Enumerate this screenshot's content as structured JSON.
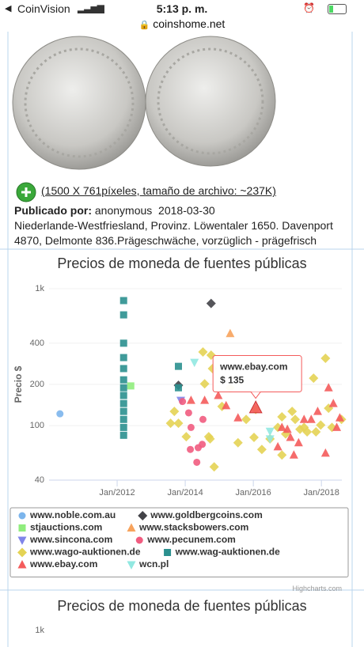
{
  "status_bar": {
    "carrier": "CoinVision",
    "time": "5:13 p. m.",
    "url": "coinshome.net"
  },
  "coin_info": {
    "image_link": "(1500 X 761píxeles, tamaño de archivo: ~237K)",
    "posted_by_label": "Publicado por:",
    "posted_by": "anonymous  2018-03-30",
    "description": "Niederlande-Westfriesland, Provinz. Löwentaler 1650. Davenport 4870, Delmonte 836.Prägeschwäche, vorzüglich - prägefrisch"
  },
  "chart_data": [
    {
      "type": "scatter",
      "title": "Precios de moneda de fuentes públicas",
      "y_axis_title": "Precio $",
      "y_log": true,
      "grid": true,
      "legend": "bottom",
      "credits": "Highcharts.com",
      "xlim": [
        2010,
        2018.6
      ],
      "ylim": [
        40,
        1000
      ],
      "xticks": [
        {
          "value": 2012,
          "label": "Jan/2012"
        },
        {
          "value": 2014,
          "label": "Jan/2014"
        },
        {
          "value": 2016,
          "label": "Jan/2016"
        },
        {
          "value": 2018,
          "label": "Jan/2018"
        }
      ],
      "yticks": [
        40,
        100,
        200,
        400,
        {
          "value": 1000,
          "label": "1k"
        }
      ],
      "series": [
        {
          "name": "www.noble.com.au",
          "color": "#7cb5ec",
          "symbol": "circle",
          "x": [
            2010.32
          ],
          "values": [
            122
          ]
        },
        {
          "name": "www.goldbergcoins.com",
          "color": "#434348",
          "symbol": "diamond",
          "x": [
            2014.76,
            2013.8
          ],
          "values": [
            780,
            197
          ]
        },
        {
          "name": "stjauctions.com",
          "color": "#90ed7d",
          "symbol": "square",
          "x": [
            2012.4
          ],
          "values": [
            195
          ]
        },
        {
          "name": "www.stacksbowers.com",
          "color": "#f7a35c",
          "symbol": "triangle",
          "x": [
            2015.32
          ],
          "values": [
            470
          ]
        },
        {
          "name": "www.sincona.com",
          "color": "#8085e9",
          "symbol": "triangle-down",
          "x": [
            2013.87
          ],
          "values": [
            153
          ]
        },
        {
          "name": "www.pecunem.com",
          "color": "#f15c80",
          "symbol": "circle",
          "x": [
            2014.1,
            2014.17,
            2014.15,
            2014.38,
            2014.5,
            2014.34,
            2013.92,
            2014.52
          ],
          "values": [
            124,
            97,
            67,
            69,
            73,
            54,
            150,
            111
          ]
        },
        {
          "name": "www.wago-auktionen.de",
          "color": "#e4d354",
          "symbol": "diamond",
          "x": [
            2013.68,
            2013.8,
            2013.57,
            2014.03,
            2014.52,
            2014.57,
            2014.69,
            2014.73,
            2014.76,
            2014.8,
            2014.85,
            2015.08,
            2015.32,
            2015.55,
            2015.79,
            2016.02,
            2016.07,
            2016.25,
            2016.49,
            2016.72,
            2016.84,
            2016.84,
            2016.95,
            2017.14,
            2017.23,
            2017.37,
            2017.49,
            2017.58,
            2017.77,
            2017.84,
            2017.98,
            2018.12,
            2018.21,
            2018.31,
            2018.59
          ],
          "values": [
            127,
            104,
            104,
            83,
            345,
            202,
            83,
            80,
            327,
            261,
            50,
            138,
            189,
            75,
            111,
            82,
            131,
            67,
            80,
            97,
            116,
            61,
            87,
            127,
            111,
            94,
            97,
            90,
            222,
            90,
            101,
            310,
            134,
            97,
            111
          ]
        },
        {
          "name": "www.wag-auktionen.de",
          "color": "#2b908f",
          "symbol": "square",
          "x": [
            2012.19,
            2012.19,
            2012.19,
            2012.19,
            2012.19,
            2012.19,
            2012.19,
            2012.19,
            2012.19,
            2012.19,
            2012.19,
            2012.19,
            2012.19,
            2013.8,
            2013.8
          ],
          "values": [
            819,
            644,
            400,
            314,
            261,
            216,
            189,
            166,
            145,
            127,
            111,
            97,
            85,
            271,
            189
          ]
        },
        {
          "name": "www.ebay.com",
          "color": "#f45b5b",
          "symbol": "triangle",
          "x": [
            2014.17,
            2014.57,
            2014.97,
            2015.2,
            2016.07,
            2015.55,
            2016.84,
            2017.0,
            2017.19,
            2017.33,
            2017.49,
            2017.7,
            2018.12,
            2018.21,
            2018.35,
            2018.45,
            2018.54,
            2016.72,
            2017.89,
            2017.09
          ],
          "values": [
            153,
            153,
            166,
            140,
            135,
            114,
            97,
            94,
            61,
            75,
            111,
            111,
            63,
            189,
            145,
            97,
            114,
            70,
            127,
            82
          ],
          "value_labels": [
            null,
            null,
            null,
            null,
            "$ 135",
            null,
            null,
            null,
            null,
            null,
            null,
            null,
            null,
            null,
            null,
            null,
            null,
            null,
            null,
            null
          ]
        },
        {
          "name": "wcn.pl",
          "color": "#91e8e1",
          "symbol": "triangle-down",
          "x": [
            2014.27,
            2016.49,
            2016.49
          ],
          "values": [
            290,
            91,
            80
          ]
        }
      ]
    },
    {
      "type": "scatter",
      "title": "Precios de moneda de fuentes públicas",
      "y_log": true,
      "ylim": [
        40,
        1000
      ],
      "yticks": [
        {
          "value": 1000,
          "label": "1k"
        }
      ]
    }
  ]
}
